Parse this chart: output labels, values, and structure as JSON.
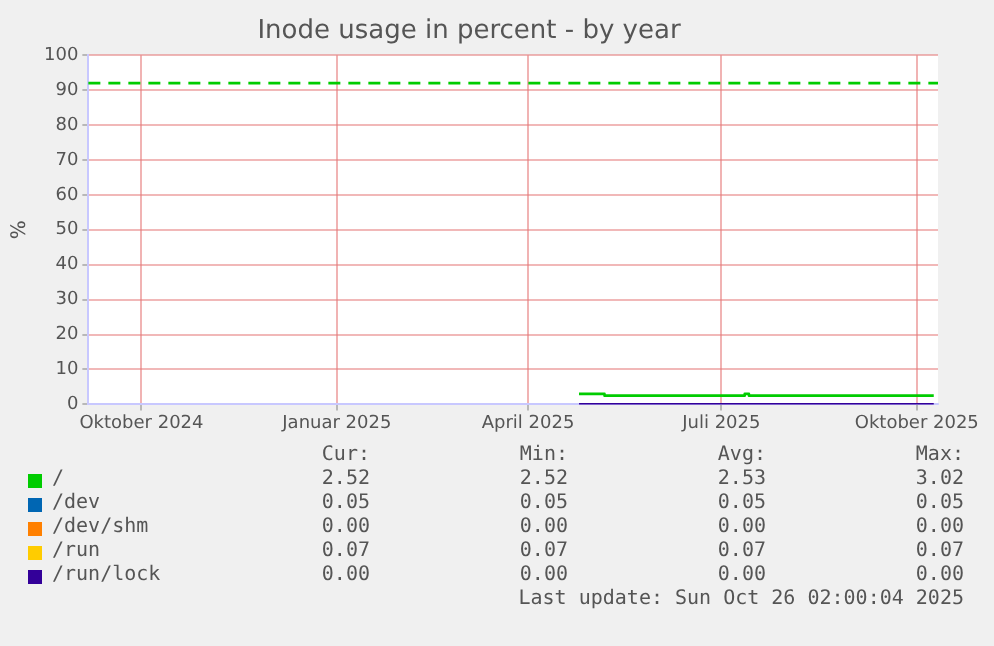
{
  "chart_data": {
    "type": "step",
    "title": "Inode usage in percent - by year",
    "ylabel": "%",
    "xlim": [
      "2024-09-21",
      "2025-10-26"
    ],
    "xticks": [
      {
        "value": "2024-10-16",
        "label": "Oktober 2024"
      },
      {
        "value": "2025-01-16",
        "label": "Januar 2025"
      },
      {
        "value": "2025-04-16",
        "label": "April 2025"
      },
      {
        "value": "2025-07-16",
        "label": "Juli 2025"
      },
      {
        "value": "2025-10-16",
        "label": "Oktober 2025"
      }
    ],
    "ylim": [
      0,
      100
    ],
    "yticks": [
      0,
      10,
      20,
      30,
      40,
      50,
      60,
      70,
      80,
      90,
      100
    ],
    "x": [
      "2025-05-10",
      "2025-05-22",
      "2025-07-27",
      "2025-07-29",
      "2025-10-24"
    ],
    "series": [
      {
        "name": "/",
        "color": "#00cc00",
        "values": [
          3.0,
          2.5,
          3.0,
          2.5,
          2.5
        ]
      },
      {
        "name": "/dev",
        "color": "#0066b3",
        "values": [
          null,
          null,
          null,
          null,
          null
        ]
      },
      {
        "name": "/dev/shm",
        "color": "#ff8000",
        "values": [
          null,
          null,
          null,
          null,
          null
        ]
      },
      {
        "name": "/run",
        "color": "#ffcc00",
        "values": [
          null,
          null,
          null,
          null,
          null
        ]
      },
      {
        "name": "/run/lock",
        "color": "#330099",
        "values": [
          0,
          0,
          0,
          0,
          0
        ]
      }
    ],
    "ref_lines": [
      {
        "axis": "y",
        "value": 92,
        "color": "#00cc00",
        "line_style": "dashed"
      }
    ],
    "grid": true,
    "legend": "bottom",
    "marker": "none",
    "annotations": [
      "Cur:",
      "Min:",
      "Avg:",
      "Max:",
      "2.52",
      "2.52",
      "2.53",
      "3.02",
      "0.05",
      "0.05",
      "0.05",
      "0.05",
      "0.00",
      "0.00",
      "0.00",
      "0.00",
      "0.07",
      "0.07",
      "0.07",
      "0.07",
      "0.00",
      "0.00",
      "0.00",
      "0.00",
      "Last update: Sun Oct 26 02:00:04 2025"
    ]
  }
}
